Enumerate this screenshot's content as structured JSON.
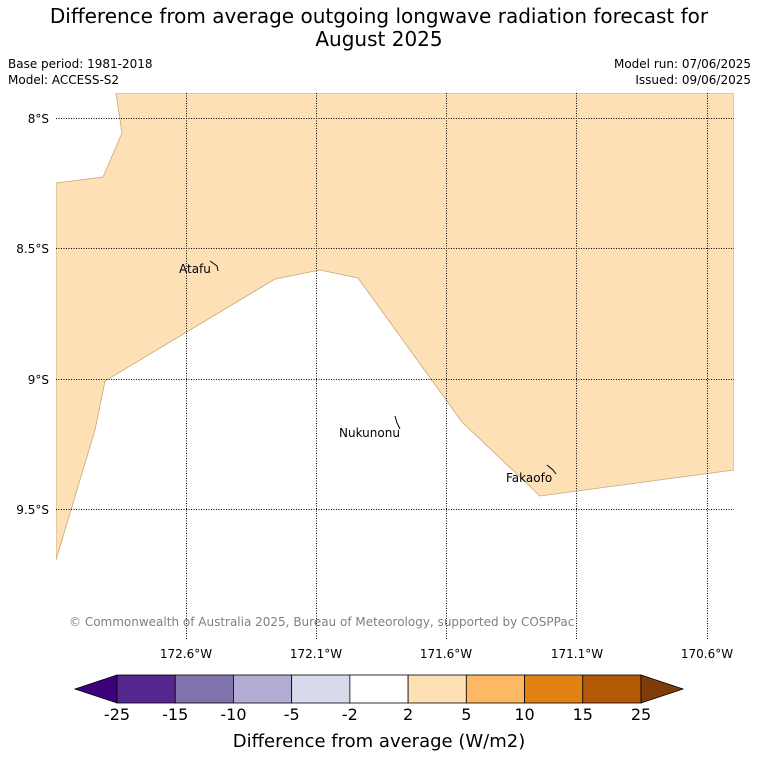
{
  "title_line1": "Difference from average outgoing longwave radiation forecast for",
  "title_line2": "August 2025",
  "base_period": "Base period: 1981-2018",
  "model": "Model: ACCESS-S2",
  "model_run": "Model run: 07/06/2025",
  "issued": "Issued: 09/06/2025",
  "map": {
    "fill_color": "#fde0b6",
    "lat_labels": [
      "8°S",
      "8.5°S",
      "9°S",
      "9.5°S"
    ],
    "lon_labels": [
      "172.6°W",
      "172.1°W",
      "171.6°W",
      "171.1°W",
      "170.6°W"
    ],
    "places": [
      {
        "name": "Atafu"
      },
      {
        "name": "Nukunonu"
      },
      {
        "name": "Fakaofo"
      }
    ],
    "copyright": "© Commonwealth of Australia 2025, Bureau of Meteorology, supported by COSPPac"
  },
  "colorbar": {
    "label": "Difference from average (W/m2)",
    "ticks": [
      "-25",
      "-15",
      "-10",
      "-5",
      "-2",
      "2",
      "5",
      "10",
      "15",
      "25"
    ],
    "under_color": "#3f007d",
    "over_color": "#7f3b08",
    "colors": [
      "#54278f",
      "#8073ac",
      "#b2abd2",
      "#d8daeb",
      "#ffffff",
      "#fee0b6",
      "#fdb863",
      "#e08214",
      "#b35806"
    ]
  }
}
